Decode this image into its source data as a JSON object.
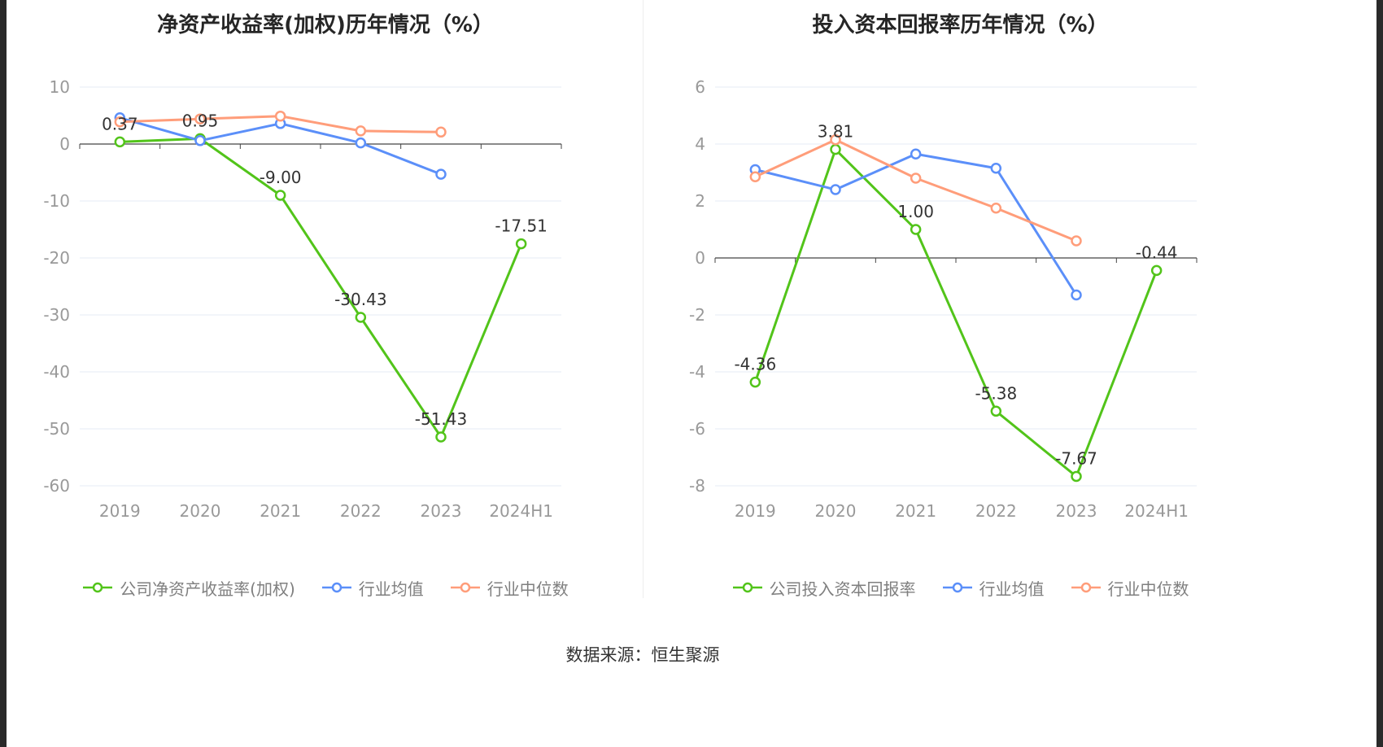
{
  "footer": {
    "source_note": "数据来源：恒生聚源"
  },
  "theme": {
    "company_color": "#52c41a",
    "industry_mean_color": "#5b8ff9",
    "industry_median_color": "#ff9d7a",
    "grid_color": "#e4ebf5",
    "zero_axis_color": "#444444",
    "tick_label_color": "#999999",
    "point_label_color": "#333333"
  },
  "chart_data": [
    {
      "type": "line",
      "title": "净资产收益率(加权)历年情况（%）",
      "xlabel": "",
      "ylabel": "",
      "categories": [
        "2019",
        "2020",
        "2021",
        "2022",
        "2023",
        "2024H1"
      ],
      "yticks": [
        10,
        0,
        -10,
        -20,
        -30,
        -40,
        -50,
        -60
      ],
      "ylim": [
        -60,
        10
      ],
      "grid": true,
      "legend_position": "bottom",
      "series": [
        {
          "name": "公司净资产收益率(加权)",
          "color": "#52c41a",
          "values": [
            0.37,
            0.95,
            -9.0,
            -30.43,
            -51.43,
            -17.51
          ],
          "point_labels": [
            "0.37",
            "0.95",
            "-9.00",
            "-30.43",
            "-51.43",
            "-17.51"
          ]
        },
        {
          "name": "行业均值",
          "color": "#5b8ff9",
          "values": [
            4.6,
            0.6,
            3.6,
            0.2,
            -5.3,
            null
          ],
          "point_labels": null
        },
        {
          "name": "行业中位数",
          "color": "#ff9d7a",
          "values": [
            3.9,
            4.4,
            4.9,
            2.3,
            2.1,
            null
          ],
          "point_labels": null
        }
      ]
    },
    {
      "type": "line",
      "title": "投入资本回报率历年情况（%）",
      "xlabel": "",
      "ylabel": "",
      "categories": [
        "2019",
        "2020",
        "2021",
        "2022",
        "2023",
        "2024H1"
      ],
      "yticks": [
        6,
        4,
        2,
        0,
        -2,
        -4,
        -6,
        -8
      ],
      "ylim": [
        -8,
        6
      ],
      "grid": true,
      "legend_position": "bottom",
      "series": [
        {
          "name": "公司投入资本回报率",
          "color": "#52c41a",
          "values": [
            -4.36,
            3.81,
            1.0,
            -5.38,
            -7.67,
            -0.44
          ],
          "point_labels": [
            "-4.36",
            "3.81",
            "1.00",
            "-5.38",
            "-7.67",
            "-0.44"
          ]
        },
        {
          "name": "行业均值",
          "color": "#5b8ff9",
          "values": [
            3.1,
            2.4,
            3.65,
            3.15,
            -1.3,
            null
          ],
          "point_labels": null
        },
        {
          "name": "行业中位数",
          "color": "#ff9d7a",
          "values": [
            2.85,
            4.15,
            2.8,
            1.75,
            0.6,
            null
          ],
          "point_labels": null
        }
      ]
    }
  ]
}
